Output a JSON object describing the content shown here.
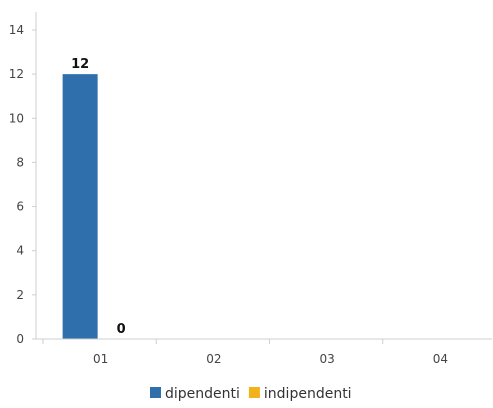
{
  "chart_data": {
    "type": "bar",
    "categories": [
      "01",
      "02",
      "03",
      "04"
    ],
    "series": [
      {
        "name": "dipendenti",
        "color": "#2e6fac",
        "values": [
          12,
          null,
          null,
          null
        ]
      },
      {
        "name": "indipendenti",
        "color": "#f2b21c",
        "values": [
          0,
          null,
          null,
          null
        ]
      }
    ],
    "ylim": [
      0,
      14
    ],
    "yticks": [
      0,
      2,
      4,
      6,
      8,
      10,
      12,
      14
    ],
    "grid": false,
    "legend": "bottom-center",
    "title": "",
    "xlabel": "",
    "ylabel": ""
  }
}
